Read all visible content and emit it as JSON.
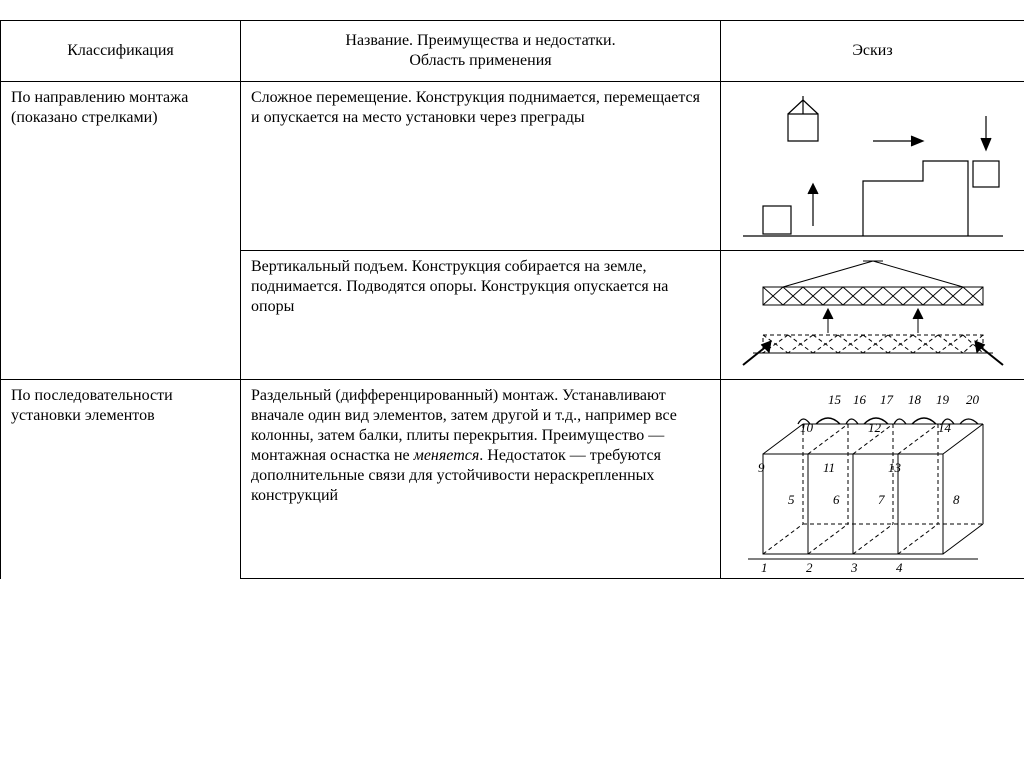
{
  "table": {
    "headers": {
      "col1": "Классификация",
      "col2": "Название. Преимущества и недостатки.\nОбласть применения",
      "col3": "Эскиз"
    },
    "row1_class": "По направлению монтажа (показано стрелками)",
    "row1_desc": "Сложное перемещение. Конструкция поднимается, перемещается и опускается на место установки через преграды",
    "row2_desc": "Вертикальный подъем. Конструкция собирается на земле, поднимается. Подводятся опоры. Конструкция опускается на опоры",
    "row3_class": "По последовательности установки элементов",
    "row3_desc_html": "Раздельный (дифференцированный) монтаж. Устанав­ливают вначале один вид элементов, затем другой и т.д., например все колонны, затем балки, плиты перекрытия. Преимущество — монтажная оснастка не <em>меняется</em>. Недостаток — требуются дополнительные связи для устойчивости нераскрепленных конструк­ций",
    "sketch3_labels": [
      "1",
      "2",
      "3",
      "4",
      "5",
      "6",
      "7",
      "8",
      "9",
      "10",
      "11",
      "12",
      "13",
      "14",
      "15",
      "16",
      "17",
      "18",
      "19",
      "20"
    ]
  },
  "style": {
    "font_family": "Times New Roman, serif",
    "font_size_pt": 12,
    "border_color": "#000000",
    "background_color": "#ffffff",
    "stroke": "#000000",
    "stroke_width": 1
  }
}
